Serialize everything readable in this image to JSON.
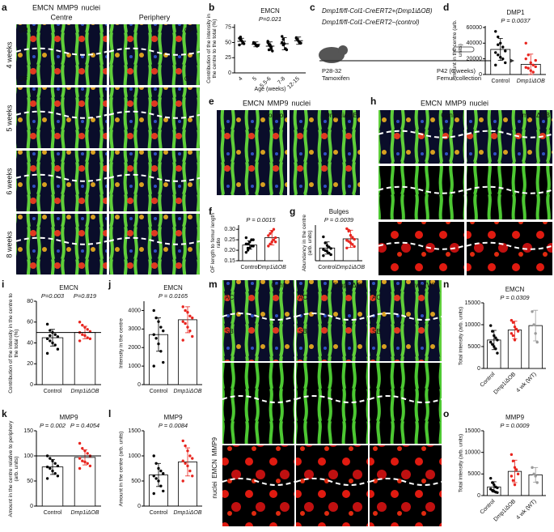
{
  "chart_data": [
    {
      "panel_label": "b",
      "type": "dot",
      "title": "EMCN",
      "annotations": [
        "P=0.021"
      ],
      "ylabel": "Contribution of the intensity in the centre to the total (%)",
      "xlabel": "Age (weeks)",
      "categories": [
        "4",
        "5",
        "5.5-6",
        "7-8",
        "12-15"
      ],
      "values": [
        52,
        47,
        44,
        48,
        53
      ],
      "errors": [
        5,
        4,
        7,
        10,
        6
      ],
      "points": [
        [
          57,
          55,
          53,
          50,
          48,
          46,
          59
        ],
        [
          50,
          48,
          46,
          44,
          45,
          49
        ],
        [
          50,
          47,
          44,
          40,
          36,
          52,
          38,
          46,
          43
        ],
        [
          60,
          55,
          48,
          40,
          38,
          50,
          46
        ],
        [
          58,
          55,
          52,
          50,
          49,
          57
        ]
      ],
      "colors": [
        "#000000",
        "#000000",
        "#000000",
        "#000000",
        "#000000"
      ],
      "ylim": [
        0,
        80
      ],
      "yticks": [
        0,
        25,
        50,
        75
      ]
    },
    {
      "panel_label": "d",
      "type": "bar",
      "title": "DMP1",
      "annotations": [
        "P = 0.0037"
      ],
      "ylabel": "Amount in the centre (arb. units)",
      "categories": [
        "Control",
        "Dmp1iΔOB"
      ],
      "values": [
        32000,
        13000
      ],
      "errors": [
        14000,
        13000
      ],
      "points": [
        [
          55000,
          48000,
          40000,
          35000,
          30000,
          28000,
          25000,
          22000,
          20000,
          15000,
          12000,
          38000
        ],
        [
          40000,
          25000,
          15000,
          12000,
          10000,
          9000,
          8000,
          5000,
          3000,
          18000,
          20000
        ]
      ],
      "colors": [
        "#000000",
        "#e8251f"
      ],
      "ylim": [
        0,
        62000
      ],
      "yticks": [
        0,
        20000,
        40000,
        60000
      ]
    },
    {
      "panel_label": "f",
      "type": "bar",
      "annotations": [
        "P = 0.0015"
      ],
      "ylabel": "OF length to femur length ratio",
      "categories": [
        "Control",
        "Dmp1iΔOB"
      ],
      "values": [
        0.225,
        0.26
      ],
      "errors": [
        0.02,
        0.035
      ],
      "points": [
        [
          0.19,
          0.2,
          0.21,
          0.22,
          0.22,
          0.23,
          0.23,
          0.24,
          0.25,
          0.25,
          0.26,
          0.21
        ],
        [
          0.22,
          0.23,
          0.24,
          0.25,
          0.26,
          0.27,
          0.28,
          0.29,
          0.3,
          0.24
        ]
      ],
      "colors": [
        "#000000",
        "#e8251f"
      ],
      "ylim": [
        0.15,
        0.32
      ],
      "yticks": [
        {
          "value": 0.15,
          "label": "0.15"
        },
        {
          "value": 0.2,
          "label": "0.20"
        },
        {
          "value": 0.25,
          "label": "0.25"
        },
        {
          "value": 0.3,
          "label": "0.30"
        }
      ]
    },
    {
      "panel_label": "g",
      "type": "bar",
      "title": "Bulges",
      "annotations": [
        "P = 0.0039"
      ],
      "ylabel": "Abundancy in the centre (arb. units)",
      "categories": [
        "Control",
        "Dmp1iΔOB"
      ],
      "values": [
        25,
        43
      ],
      "errors": [
        12,
        17
      ],
      "points": [
        [
          47,
          35,
          30,
          27,
          24,
          22,
          20,
          18,
          15,
          12,
          10
        ],
        [
          63,
          58,
          50,
          46,
          42,
          40,
          38,
          35,
          32,
          28,
          25,
          60
        ]
      ],
      "colors": [
        "#000000",
        "#e8251f"
      ],
      "ylim": [
        0,
        70
      ]
    },
    {
      "panel_label": "i",
      "type": "bar",
      "title": "EMCN",
      "annotations": [
        "P=0.003",
        "P=0.819"
      ],
      "ylabel": "Contribution of the intensity in the centre to the total (%)",
      "categories": [
        "Control",
        "Dmp1iΔOB"
      ],
      "values": [
        45,
        50
      ],
      "errors": [
        8,
        6
      ],
      "points": [
        [
          58,
          52,
          50,
          48,
          46,
          44,
          42,
          40,
          38,
          34,
          30,
          47
        ],
        [
          60,
          57,
          55,
          53,
          51,
          50,
          48,
          47,
          45,
          44,
          42
        ]
      ],
      "colors": [
        "#000000",
        "#e8251f"
      ],
      "refline": 50,
      "ylim": [
        0,
        80
      ],
      "yticks": [
        0,
        20,
        40,
        60,
        80
      ]
    },
    {
      "panel_label": "j",
      "type": "bar",
      "title": "EMCN",
      "annotations": [
        "P = 0.0165"
      ],
      "ylabel": "Intensity in the centre",
      "categories": [
        "Control",
        "Dmp1iΔOB"
      ],
      "values": [
        2700,
        3500
      ],
      "errors": [
        900,
        700
      ],
      "points": [
        [
          4000,
          3600,
          3400,
          3100,
          2900,
          2700,
          2500,
          2200,
          1800,
          1200,
          1000
        ],
        [
          4200,
          4000,
          3900,
          3700,
          3600,
          3400,
          3300,
          3100,
          2900,
          2600,
          2400
        ]
      ],
      "colors": [
        "#000000",
        "#e8251f"
      ],
      "ylim": [
        0,
        4500
      ],
      "yticks": [
        0,
        1000,
        2000,
        3000,
        4000
      ]
    },
    {
      "panel_label": "k",
      "type": "bar",
      "title": "MMP9",
      "annotations": [
        "P = 0.002",
        "P = 0.4054"
      ],
      "ylabel": "Amount in the centre relative to periphery (arb. units)",
      "categories": [
        "Control",
        "Dmp1iΔOB"
      ],
      "values": [
        78,
        97
      ],
      "errors": [
        15,
        15
      ],
      "points": [
        [
          100,
          95,
          90,
          85,
          80,
          78,
          75,
          70,
          65,
          60,
          55
        ],
        [
          125,
          115,
          110,
          105,
          100,
          95,
          90,
          88,
          85,
          80,
          75
        ]
      ],
      "colors": [
        "#000000",
        "#e8251f"
      ],
      "refline": 100,
      "ylim": [
        0,
        150
      ],
      "yticks": [
        0,
        50,
        100,
        150
      ]
    },
    {
      "panel_label": "l",
      "type": "bar",
      "title": "MMP9",
      "annotations": [
        "P = 0.0084"
      ],
      "ylabel": "Amount in the centre (arb. units)",
      "categories": [
        "Control",
        "Dmp1iΔOB"
      ],
      "values": [
        620,
        880
      ],
      "errors": [
        230,
        280
      ],
      "points": [
        [
          1000,
          850,
          750,
          700,
          650,
          600,
          550,
          500,
          400,
          300,
          250
        ],
        [
          1300,
          1200,
          1100,
          1000,
          950,
          900,
          850,
          800,
          700,
          600,
          500
        ]
      ],
      "colors": [
        "#000000",
        "#e8251f"
      ],
      "ylim": [
        0,
        1500
      ],
      "yticks": [
        0,
        500,
        1000,
        1500
      ]
    },
    {
      "panel_label": "n",
      "type": "bar",
      "title": "EMCN",
      "annotations": [
        "P = 0.0309"
      ],
      "ylabel": "Total intensity (arb. units)",
      "categories": [
        "Control",
        "Dmp1iΔOB",
        "4 wk (WT)"
      ],
      "values": [
        6500,
        8800,
        9800
      ],
      "errors": [
        2200,
        2000,
        3500
      ],
      "points": [
        [
          9800,
          8500,
          7500,
          7000,
          6500,
          6000,
          5500,
          5000,
          4500,
          3500
        ],
        [
          11000,
          10500,
          9500,
          9000,
          8500,
          8000,
          7500,
          6500
        ],
        [
          13000,
          10000,
          8000,
          6000
        ]
      ],
      "colors": [
        "#000000",
        "#e8251f",
        "#9a9a9a"
      ],
      "ylim": [
        0,
        15000
      ],
      "yticks": [
        0,
        5000,
        10000,
        15000
      ]
    },
    {
      "panel_label": "o",
      "type": "bar",
      "title": "MMP9",
      "annotations": [
        "P = 0.0009"
      ],
      "ylabel": "Total intensity (arb. units)",
      "categories": [
        "Control",
        "Dmp1iΔOB",
        "4 wk (WT)"
      ],
      "values": [
        2000,
        5600,
        4800
      ],
      "errors": [
        1200,
        2600,
        1700
      ],
      "points": [
        [
          4000,
          3000,
          2500,
          2000,
          1800,
          1500,
          1200,
          1000,
          800,
          700
        ],
        [
          9500,
          8000,
          6500,
          6000,
          5000,
          4500,
          3500,
          2500
        ],
        [
          6500,
          5000,
          4500,
          3000
        ]
      ],
      "colors": [
        "#000000",
        "#e8251f",
        "#9a9a9a"
      ],
      "ylim": [
        0,
        15000
      ],
      "yticks": [
        0,
        5000,
        10000,
        15000
      ]
    }
  ],
  "images": {
    "a": {
      "label": "a",
      "legend": [
        "EMCN",
        "MMP9",
        "nuclei"
      ],
      "columns": [
        "Centre",
        "Periphery"
      ],
      "rows": [
        "4 weeks",
        "5 weeks",
        "6 weeks",
        "8 weeks"
      ],
      "marks": [
        "GP",
        "OF",
        "GP",
        "OF"
      ]
    },
    "c": {
      "label": "c",
      "lines": [
        "Dmp1fl/fl-Col1-CreERT2+(Dmp1iΔOB)",
        "Dmp1fl/fl-Col1-CreERT2−(control)"
      ],
      "start": [
        "P28-32",
        "Tamoxifen"
      ],
      "end": [
        "P42 (6 weeks)",
        "Femur collection"
      ]
    },
    "e": {
      "label": "e",
      "legend": [
        "EMCN",
        "MMP9",
        "nuclei"
      ],
      "columns": [
        "Control",
        "Dmp1iΔOB"
      ]
    },
    "h": {
      "label": "h",
      "legend": [
        "EMCN",
        "MMP9",
        "nuclei"
      ],
      "columns": [
        "Control",
        "Dmp1iΔOB"
      ]
    },
    "m": {
      "label": "m",
      "columns": [
        "Control",
        "Dmp1iΔOB",
        "4 wk (WT)"
      ],
      "marks": [
        "AC",
        "SB"
      ],
      "legend": [
        "MMP9",
        "EMCN",
        "nuclei"
      ]
    }
  }
}
